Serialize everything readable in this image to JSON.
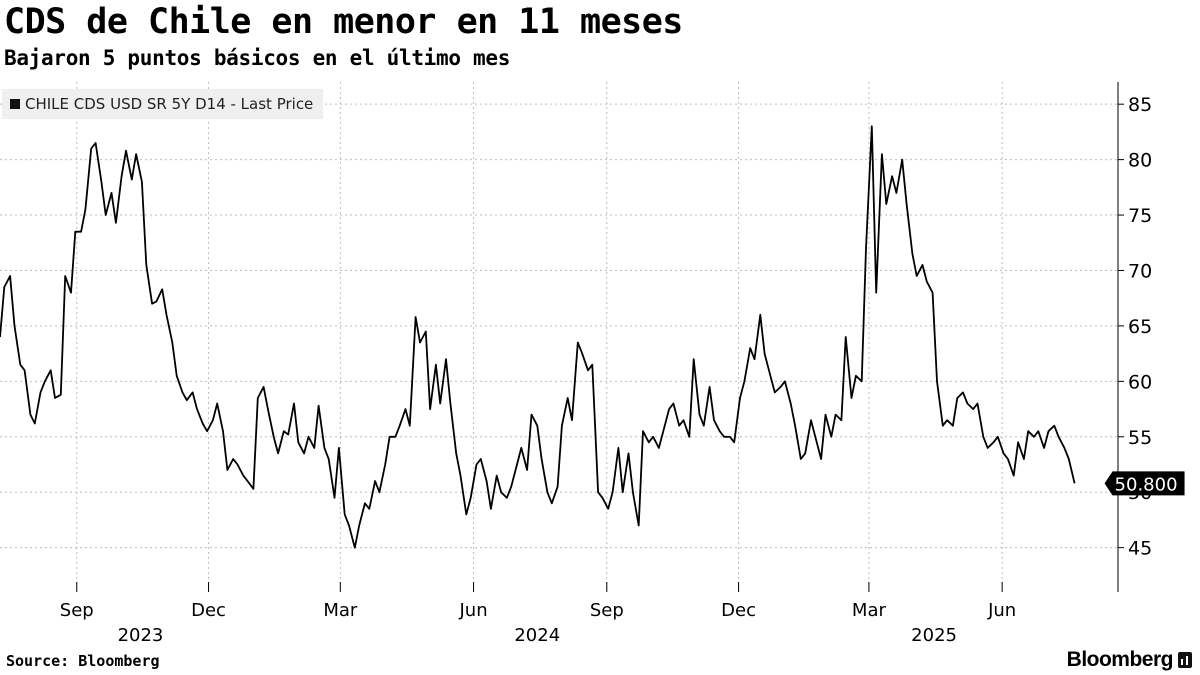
{
  "header": {
    "title": "CDS de Chile en menor en 11 meses",
    "subtitle": "Bajaron 5 puntos básicos en el último mes"
  },
  "legend": {
    "label": "CHILE CDS USD SR 5Y D14 - Last Price"
  },
  "footer": {
    "source": "Source: Bloomberg",
    "logo": "Bloomberg"
  },
  "colors": {
    "line": "#000000",
    "grid": "#bdbdbd",
    "legend_bg": "#efefef"
  },
  "chart_data": {
    "type": "line",
    "ylim": [
      41,
      87
    ],
    "yticks": [
      45,
      50,
      55,
      60,
      65,
      70,
      75,
      80,
      85
    ],
    "last_value_label": "50.800",
    "x_axis": {
      "range": [
        "2023-07-10",
        "2025-08-20"
      ],
      "months": [
        {
          "label": "Sep",
          "date": "2023-09-01"
        },
        {
          "label": "Dec",
          "date": "2023-12-01"
        },
        {
          "label": "Mar",
          "date": "2024-03-01"
        },
        {
          "label": "Jun",
          "date": "2024-06-01"
        },
        {
          "label": "Sep",
          "date": "2024-09-01"
        },
        {
          "label": "Dec",
          "date": "2024-12-01"
        },
        {
          "label": "Mar",
          "date": "2025-03-01"
        },
        {
          "label": "Jun",
          "date": "2025-06-01"
        }
      ],
      "years": [
        {
          "label": "2023",
          "date": "2023-10-15"
        },
        {
          "label": "2024",
          "date": "2024-07-15"
        },
        {
          "label": "2025",
          "date": "2025-04-15"
        }
      ]
    },
    "series": [
      {
        "points": [
          [
            "2023-07-10",
            64.0
          ],
          [
            "2023-07-13",
            68.5
          ],
          [
            "2023-07-17",
            69.5
          ],
          [
            "2023-07-20",
            65.0
          ],
          [
            "2023-07-24",
            61.5
          ],
          [
            "2023-07-27",
            61.0
          ],
          [
            "2023-07-31",
            57.0
          ],
          [
            "2023-08-03",
            56.2
          ],
          [
            "2023-08-07",
            59.0
          ],
          [
            "2023-08-10",
            60.0
          ],
          [
            "2023-08-14",
            61.0
          ],
          [
            "2023-08-17",
            58.5
          ],
          [
            "2023-08-21",
            58.8
          ],
          [
            "2023-08-24",
            69.5
          ],
          [
            "2023-08-28",
            68.0
          ],
          [
            "2023-08-31",
            73.5
          ],
          [
            "2023-09-04",
            73.5
          ],
          [
            "2023-09-07",
            75.5
          ],
          [
            "2023-09-11",
            81.0
          ],
          [
            "2023-09-14",
            81.5
          ],
          [
            "2023-09-18",
            78.0
          ],
          [
            "2023-09-21",
            75.0
          ],
          [
            "2023-09-25",
            77.0
          ],
          [
            "2023-09-28",
            74.3
          ],
          [
            "2023-10-02",
            78.5
          ],
          [
            "2023-10-05",
            80.8
          ],
          [
            "2023-10-09",
            78.2
          ],
          [
            "2023-10-12",
            80.5
          ],
          [
            "2023-10-16",
            78.0
          ],
          [
            "2023-10-19",
            70.5
          ],
          [
            "2023-10-23",
            67.0
          ],
          [
            "2023-10-26",
            67.2
          ],
          [
            "2023-10-30",
            68.3
          ],
          [
            "2023-11-02",
            66.0
          ],
          [
            "2023-11-06",
            63.5
          ],
          [
            "2023-11-09",
            60.5
          ],
          [
            "2023-11-13",
            59.0
          ],
          [
            "2023-11-16",
            58.3
          ],
          [
            "2023-11-20",
            59.0
          ],
          [
            "2023-11-23",
            57.5
          ],
          [
            "2023-11-27",
            56.2
          ],
          [
            "2023-11-30",
            55.5
          ],
          [
            "2023-12-04",
            56.5
          ],
          [
            "2023-12-07",
            58.0
          ],
          [
            "2023-12-11",
            55.5
          ],
          [
            "2023-12-14",
            52.0
          ],
          [
            "2023-12-18",
            53.0
          ],
          [
            "2023-12-21",
            52.5
          ],
          [
            "2023-12-25",
            51.5
          ],
          [
            "2023-12-28",
            51.0
          ],
          [
            "2024-01-01",
            50.3
          ],
          [
            "2024-01-04",
            58.5
          ],
          [
            "2024-01-08",
            59.5
          ],
          [
            "2024-01-11",
            57.5
          ],
          [
            "2024-01-15",
            55.0
          ],
          [
            "2024-01-18",
            53.5
          ],
          [
            "2024-01-22",
            55.5
          ],
          [
            "2024-01-25",
            55.2
          ],
          [
            "2024-01-29",
            58.0
          ],
          [
            "2024-02-01",
            54.5
          ],
          [
            "2024-02-05",
            53.5
          ],
          [
            "2024-02-08",
            55.0
          ],
          [
            "2024-02-12",
            54.0
          ],
          [
            "2024-02-15",
            57.8
          ],
          [
            "2024-02-19",
            54.0
          ],
          [
            "2024-02-22",
            53.0
          ],
          [
            "2024-02-26",
            49.5
          ],
          [
            "2024-02-29",
            54.0
          ],
          [
            "2024-03-04",
            48.0
          ],
          [
            "2024-03-07",
            47.0
          ],
          [
            "2024-03-11",
            45.0
          ],
          [
            "2024-03-14",
            47.0
          ],
          [
            "2024-03-18",
            49.0
          ],
          [
            "2024-03-21",
            48.5
          ],
          [
            "2024-03-25",
            51.0
          ],
          [
            "2024-03-28",
            50.0
          ],
          [
            "2024-04-01",
            52.5
          ],
          [
            "2024-04-04",
            55.0
          ],
          [
            "2024-04-08",
            55.0
          ],
          [
            "2024-04-11",
            56.0
          ],
          [
            "2024-04-15",
            57.5
          ],
          [
            "2024-04-18",
            56.0
          ],
          [
            "2024-04-22",
            65.8
          ],
          [
            "2024-04-25",
            63.5
          ],
          [
            "2024-04-29",
            64.5
          ],
          [
            "2024-05-02",
            57.5
          ],
          [
            "2024-05-06",
            61.5
          ],
          [
            "2024-05-09",
            58.0
          ],
          [
            "2024-05-13",
            62.0
          ],
          [
            "2024-05-16",
            58.0
          ],
          [
            "2024-05-20",
            53.5
          ],
          [
            "2024-05-23",
            51.5
          ],
          [
            "2024-05-27",
            48.0
          ],
          [
            "2024-05-30",
            49.5
          ],
          [
            "2024-06-03",
            52.5
          ],
          [
            "2024-06-06",
            53.0
          ],
          [
            "2024-06-10",
            51.0
          ],
          [
            "2024-06-13",
            48.5
          ],
          [
            "2024-06-17",
            51.5
          ],
          [
            "2024-06-20",
            50.0
          ],
          [
            "2024-06-24",
            49.5
          ],
          [
            "2024-06-27",
            50.5
          ],
          [
            "2024-07-01",
            52.5
          ],
          [
            "2024-07-04",
            54.0
          ],
          [
            "2024-07-08",
            52.0
          ],
          [
            "2024-07-11",
            57.0
          ],
          [
            "2024-07-15",
            56.0
          ],
          [
            "2024-07-18",
            53.0
          ],
          [
            "2024-07-22",
            50.0
          ],
          [
            "2024-07-25",
            49.0
          ],
          [
            "2024-07-29",
            50.5
          ],
          [
            "2024-08-01",
            56.0
          ],
          [
            "2024-08-05",
            58.5
          ],
          [
            "2024-08-08",
            56.5
          ],
          [
            "2024-08-12",
            63.5
          ],
          [
            "2024-08-15",
            62.5
          ],
          [
            "2024-08-19",
            61.0
          ],
          [
            "2024-08-22",
            61.5
          ],
          [
            "2024-08-26",
            50.0
          ],
          [
            "2024-08-29",
            49.5
          ],
          [
            "2024-09-02",
            48.5
          ],
          [
            "2024-09-05",
            50.0
          ],
          [
            "2024-09-09",
            54.0
          ],
          [
            "2024-09-12",
            50.0
          ],
          [
            "2024-09-16",
            53.5
          ],
          [
            "2024-09-19",
            50.0
          ],
          [
            "2024-09-23",
            47.0
          ],
          [
            "2024-09-26",
            55.5
          ],
          [
            "2024-09-30",
            54.5
          ],
          [
            "2024-10-03",
            55.0
          ],
          [
            "2024-10-07",
            54.0
          ],
          [
            "2024-10-10",
            55.5
          ],
          [
            "2024-10-14",
            57.5
          ],
          [
            "2024-10-17",
            58.0
          ],
          [
            "2024-10-21",
            56.0
          ],
          [
            "2024-10-24",
            56.5
          ],
          [
            "2024-10-28",
            55.0
          ],
          [
            "2024-10-31",
            62.0
          ],
          [
            "2024-11-04",
            57.0
          ],
          [
            "2024-11-07",
            56.0
          ],
          [
            "2024-11-11",
            59.5
          ],
          [
            "2024-11-14",
            56.5
          ],
          [
            "2024-11-18",
            55.5
          ],
          [
            "2024-11-21",
            55.0
          ],
          [
            "2024-11-25",
            55.0
          ],
          [
            "2024-11-28",
            54.5
          ],
          [
            "2024-12-02",
            58.5
          ],
          [
            "2024-12-05",
            60.0
          ],
          [
            "2024-12-09",
            63.0
          ],
          [
            "2024-12-12",
            62.0
          ],
          [
            "2024-12-16",
            66.0
          ],
          [
            "2024-12-19",
            62.5
          ],
          [
            "2024-12-23",
            60.5
          ],
          [
            "2024-12-26",
            59.0
          ],
          [
            "2024-12-30",
            59.5
          ],
          [
            "2025-01-02",
            60.0
          ],
          [
            "2025-01-06",
            58.0
          ],
          [
            "2025-01-09",
            56.0
          ],
          [
            "2025-01-13",
            53.0
          ],
          [
            "2025-01-16",
            53.5
          ],
          [
            "2025-01-20",
            56.5
          ],
          [
            "2025-01-23",
            55.0
          ],
          [
            "2025-01-27",
            53.0
          ],
          [
            "2025-01-30",
            57.0
          ],
          [
            "2025-02-03",
            55.0
          ],
          [
            "2025-02-06",
            57.0
          ],
          [
            "2025-02-10",
            56.5
          ],
          [
            "2025-02-13",
            64.0
          ],
          [
            "2025-02-17",
            58.5
          ],
          [
            "2025-02-20",
            60.5
          ],
          [
            "2025-02-24",
            60.0
          ],
          [
            "2025-02-27",
            72.0
          ],
          [
            "2025-03-03",
            83.0
          ],
          [
            "2025-03-06",
            68.0
          ],
          [
            "2025-03-10",
            80.5
          ],
          [
            "2025-03-13",
            76.0
          ],
          [
            "2025-03-17",
            78.5
          ],
          [
            "2025-03-20",
            77.0
          ],
          [
            "2025-03-24",
            80.0
          ],
          [
            "2025-03-27",
            76.0
          ],
          [
            "2025-03-31",
            71.5
          ],
          [
            "2025-04-03",
            69.5
          ],
          [
            "2025-04-07",
            70.5
          ],
          [
            "2025-04-10",
            69.0
          ],
          [
            "2025-04-14",
            68.0
          ],
          [
            "2025-04-17",
            60.0
          ],
          [
            "2025-04-21",
            56.0
          ],
          [
            "2025-04-24",
            56.5
          ],
          [
            "2025-04-28",
            56.0
          ],
          [
            "2025-05-01",
            58.5
          ],
          [
            "2025-05-05",
            59.0
          ],
          [
            "2025-05-08",
            58.0
          ],
          [
            "2025-05-12",
            57.5
          ],
          [
            "2025-05-15",
            58.0
          ],
          [
            "2025-05-19",
            55.0
          ],
          [
            "2025-05-22",
            54.0
          ],
          [
            "2025-05-26",
            54.5
          ],
          [
            "2025-05-29",
            55.0
          ],
          [
            "2025-06-02",
            53.5
          ],
          [
            "2025-06-05",
            53.0
          ],
          [
            "2025-06-09",
            51.5
          ],
          [
            "2025-06-12",
            54.5
          ],
          [
            "2025-06-16",
            53.0
          ],
          [
            "2025-06-19",
            55.5
          ],
          [
            "2025-06-23",
            55.0
          ],
          [
            "2025-06-26",
            55.5
          ],
          [
            "2025-06-30",
            54.0
          ],
          [
            "2025-07-03",
            55.5
          ],
          [
            "2025-07-07",
            56.0
          ],
          [
            "2025-07-10",
            55.0
          ],
          [
            "2025-07-14",
            54.0
          ],
          [
            "2025-07-17",
            53.0
          ],
          [
            "2025-07-21",
            50.8
          ]
        ]
      }
    ]
  }
}
